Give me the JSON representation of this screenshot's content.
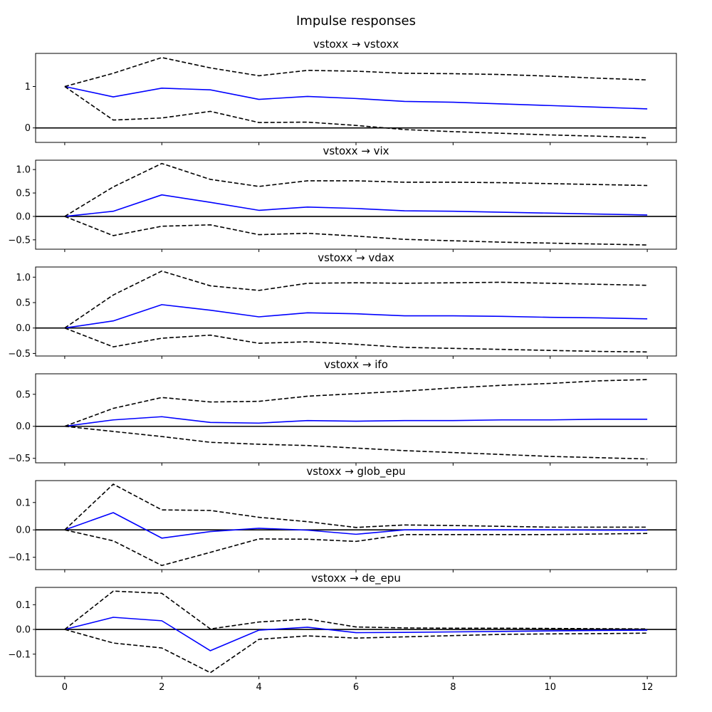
{
  "figure": {
    "title": "Impulse responses"
  },
  "chart_data": [
    {
      "type": "line",
      "title": "vstoxx → vstoxx",
      "x": [
        0,
        1,
        2,
        3,
        4,
        5,
        6,
        7,
        8,
        9,
        10,
        11,
        12
      ],
      "ylim": [
        -0.35,
        1.8
      ],
      "yticks": [
        0,
        1
      ],
      "ytick_labels": [
        "0",
        "1"
      ],
      "zero_line": true,
      "series": [
        {
          "role": "response",
          "color": "#0000ff",
          "style": "solid",
          "values": [
            1.0,
            0.75,
            0.96,
            0.92,
            0.69,
            0.76,
            0.71,
            0.64,
            0.62,
            0.58,
            0.54,
            0.5,
            0.46
          ]
        },
        {
          "role": "upper",
          "color": "#000000",
          "style": "dashed",
          "values": [
            1.0,
            1.32,
            1.7,
            1.45,
            1.26,
            1.39,
            1.37,
            1.32,
            1.31,
            1.29,
            1.25,
            1.2,
            1.16
          ]
        },
        {
          "role": "lower",
          "color": "#000000",
          "style": "dashed",
          "values": [
            1.0,
            0.19,
            0.24,
            0.4,
            0.13,
            0.14,
            0.06,
            -0.04,
            -0.09,
            -0.13,
            -0.17,
            -0.2,
            -0.24
          ]
        }
      ]
    },
    {
      "type": "line",
      "title": "vstoxx → vix",
      "x": [
        0,
        1,
        2,
        3,
        4,
        5,
        6,
        7,
        8,
        9,
        10,
        11,
        12
      ],
      "ylim": [
        -0.7,
        1.2
      ],
      "yticks": [
        -0.5,
        0.0,
        0.5,
        1.0
      ],
      "ytick_labels": [
        "−0.5",
        "0.0",
        "0.5",
        "1.0"
      ],
      "zero_line": true,
      "series": [
        {
          "role": "response",
          "color": "#0000ff",
          "style": "solid",
          "values": [
            0.0,
            0.11,
            0.46,
            0.3,
            0.13,
            0.2,
            0.17,
            0.12,
            0.11,
            0.09,
            0.07,
            0.05,
            0.03
          ]
        },
        {
          "role": "upper",
          "color": "#000000",
          "style": "dashed",
          "values": [
            0.0,
            0.63,
            1.13,
            0.79,
            0.64,
            0.76,
            0.76,
            0.73,
            0.73,
            0.72,
            0.7,
            0.68,
            0.66
          ]
        },
        {
          "role": "lower",
          "color": "#000000",
          "style": "dashed",
          "values": [
            0.0,
            -0.41,
            -0.21,
            -0.18,
            -0.39,
            -0.36,
            -0.42,
            -0.49,
            -0.52,
            -0.55,
            -0.57,
            -0.59,
            -0.61
          ]
        }
      ]
    },
    {
      "type": "line",
      "title": "vstoxx → vdax",
      "x": [
        0,
        1,
        2,
        3,
        4,
        5,
        6,
        7,
        8,
        9,
        10,
        11,
        12
      ],
      "ylim": [
        -0.55,
        1.2
      ],
      "yticks": [
        -0.5,
        0.0,
        0.5,
        1.0
      ],
      "ytick_labels": [
        "−0.5",
        "0.0",
        "0.5",
        "1.0"
      ],
      "zero_line": true,
      "series": [
        {
          "role": "response",
          "color": "#0000ff",
          "style": "solid",
          "values": [
            0.0,
            0.14,
            0.46,
            0.35,
            0.22,
            0.3,
            0.28,
            0.24,
            0.24,
            0.23,
            0.21,
            0.2,
            0.18
          ]
        },
        {
          "role": "upper",
          "color": "#000000",
          "style": "dashed",
          "values": [
            0.0,
            0.65,
            1.12,
            0.83,
            0.74,
            0.88,
            0.89,
            0.88,
            0.89,
            0.9,
            0.88,
            0.86,
            0.84
          ]
        },
        {
          "role": "lower",
          "color": "#000000",
          "style": "dashed",
          "values": [
            0.0,
            -0.37,
            -0.2,
            -0.14,
            -0.3,
            -0.27,
            -0.32,
            -0.38,
            -0.4,
            -0.42,
            -0.44,
            -0.46,
            -0.47
          ]
        }
      ]
    },
    {
      "type": "line",
      "title": "vstoxx → ifo",
      "x": [
        0,
        1,
        2,
        3,
        4,
        5,
        6,
        7,
        8,
        9,
        10,
        11,
        12
      ],
      "ylim": [
        -0.57,
        0.82
      ],
      "yticks": [
        -0.5,
        0.0,
        0.5
      ],
      "ytick_labels": [
        "−0.5",
        "0.0",
        "0.5"
      ],
      "zero_line": true,
      "series": [
        {
          "role": "response",
          "color": "#0000ff",
          "style": "solid",
          "values": [
            0.0,
            0.1,
            0.15,
            0.06,
            0.05,
            0.09,
            0.08,
            0.09,
            0.09,
            0.1,
            0.1,
            0.11,
            0.11
          ]
        },
        {
          "role": "upper",
          "color": "#000000",
          "style": "dashed",
          "values": [
            0.0,
            0.28,
            0.45,
            0.38,
            0.39,
            0.47,
            0.51,
            0.55,
            0.6,
            0.64,
            0.67,
            0.71,
            0.73
          ]
        },
        {
          "role": "lower",
          "color": "#000000",
          "style": "dashed",
          "values": [
            0.0,
            -0.08,
            -0.16,
            -0.25,
            -0.28,
            -0.3,
            -0.34,
            -0.38,
            -0.41,
            -0.44,
            -0.47,
            -0.49,
            -0.51
          ]
        }
      ]
    },
    {
      "type": "line",
      "title": "vstoxx → glob_epu",
      "x": [
        0,
        1,
        2,
        3,
        4,
        5,
        6,
        7,
        8,
        9,
        10,
        11,
        12
      ],
      "ylim": [
        -0.145,
        0.18
      ],
      "yticks": [
        -0.1,
        0.0,
        0.1
      ],
      "ytick_labels": [
        "−0.1",
        "0.0",
        "0.1"
      ],
      "zero_line": true,
      "series": [
        {
          "role": "response",
          "color": "#0000ff",
          "style": "solid",
          "values": [
            0.0,
            0.063,
            -0.03,
            -0.006,
            0.006,
            -0.001,
            -0.016,
            0.0,
            0.0,
            0.0,
            0.0,
            -0.001,
            -0.001
          ]
        },
        {
          "role": "upper",
          "color": "#000000",
          "style": "dashed",
          "values": [
            0.0,
            0.167,
            0.073,
            0.071,
            0.046,
            0.03,
            0.009,
            0.018,
            0.016,
            0.013,
            0.01,
            0.01,
            0.01
          ]
        },
        {
          "role": "lower",
          "color": "#000000",
          "style": "dashed",
          "values": [
            0.0,
            -0.04,
            -0.13,
            -0.082,
            -0.033,
            -0.034,
            -0.042,
            -0.017,
            -0.017,
            -0.017,
            -0.017,
            -0.015,
            -0.013
          ]
        }
      ]
    },
    {
      "type": "line",
      "title": "vstoxx → de_epu",
      "x": [
        0,
        1,
        2,
        3,
        4,
        5,
        6,
        7,
        8,
        9,
        10,
        11,
        12
      ],
      "ylim": [
        -0.19,
        0.17
      ],
      "yticks": [
        -0.1,
        0.0,
        0.1
      ],
      "ytick_labels": [
        "−0.1",
        "0.0",
        "0.1"
      ],
      "zero_line": true,
      "series": [
        {
          "role": "response",
          "color": "#0000ff",
          "style": "solid",
          "values": [
            0.0,
            0.049,
            0.035,
            -0.086,
            -0.003,
            0.009,
            -0.013,
            -0.012,
            -0.01,
            -0.008,
            -0.006,
            -0.004,
            -0.003
          ]
        },
        {
          "role": "upper",
          "color": "#000000",
          "style": "dashed",
          "values": [
            0.0,
            0.155,
            0.146,
            0.002,
            0.03,
            0.042,
            0.01,
            0.006,
            0.005,
            0.005,
            0.004,
            0.003,
            0.002
          ]
        },
        {
          "role": "lower",
          "color": "#000000",
          "style": "dashed",
          "values": [
            0.0,
            -0.055,
            -0.075,
            -0.175,
            -0.04,
            -0.026,
            -0.035,
            -0.03,
            -0.025,
            -0.02,
            -0.018,
            -0.017,
            -0.015
          ]
        }
      ]
    }
  ],
  "shared_xaxis": {
    "xlim": [
      -0.6,
      12.6
    ],
    "xticks": [
      0,
      2,
      4,
      6,
      8,
      10,
      12
    ],
    "xtick_labels": [
      "0",
      "2",
      "4",
      "6",
      "8",
      "10",
      "12"
    ]
  }
}
